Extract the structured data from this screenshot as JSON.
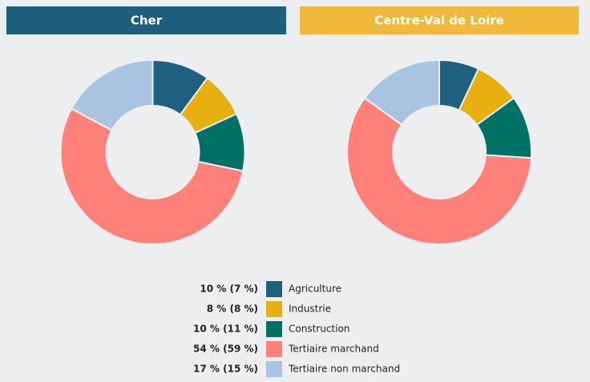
{
  "chart_data": [
    {
      "type": "pie",
      "title": "Cher",
      "header_color": "#1e5f7e",
      "values": [
        10,
        8,
        10,
        54,
        17
      ]
    },
    {
      "type": "pie",
      "title": "Centre-Val de Loire",
      "header_color": "#f0b93a",
      "values": [
        7,
        8,
        11,
        59,
        15
      ]
    }
  ],
  "legend": {
    "categories": [
      "Agriculture",
      "Industrie",
      "Construction",
      "Tertiaire marchand",
      "Tertiaire non marchand"
    ],
    "colors": [
      "#1f5f7f",
      "#e8b00f",
      "#007167",
      "#ff7f79",
      "#a8c4e0"
    ],
    "value_labels": [
      "10 % (7 %)",
      "8 % (8 %)",
      "10 % (11 %)",
      "54 % (59 %)",
      "17 % (15 %)"
    ]
  }
}
